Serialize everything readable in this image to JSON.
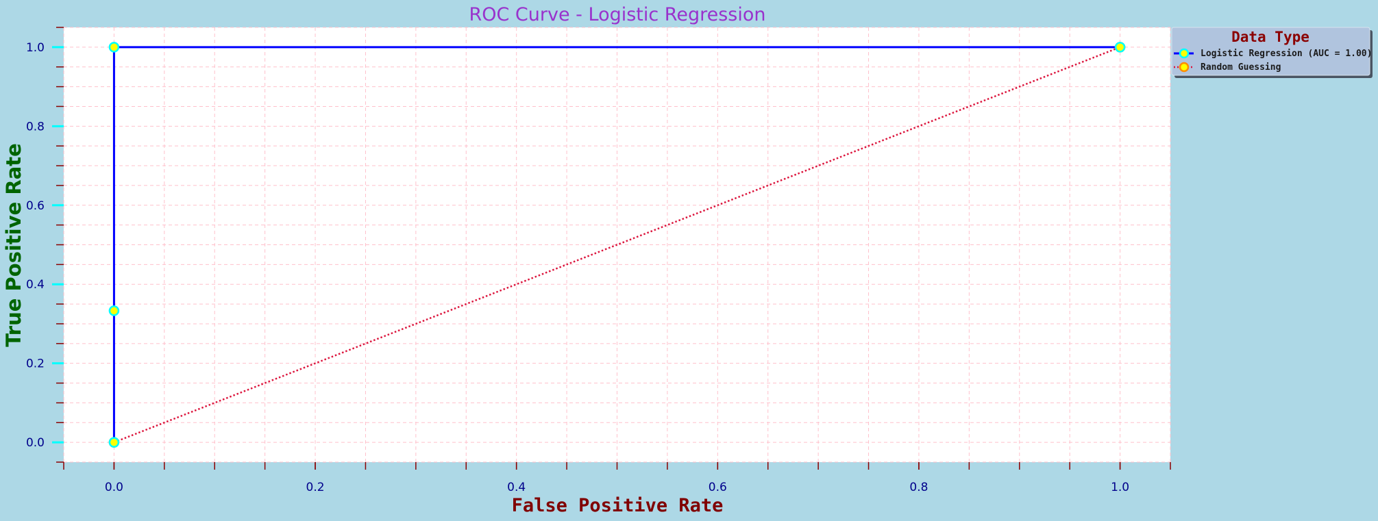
{
  "chart_data": {
    "type": "line",
    "title": "ROC Curve - Logistic Regression",
    "xlabel": "False Positive Rate",
    "ylabel": "True Positive Rate",
    "xlim": [
      -0.05,
      1.05
    ],
    "ylim": [
      -0.05,
      1.05
    ],
    "x_ticks": [
      0.0,
      0.2,
      0.4,
      0.6,
      0.8,
      1.0
    ],
    "x_tick_labels": [
      "0.0",
      "0.2",
      "0.4",
      "0.6",
      "0.8",
      "1.0"
    ],
    "y_ticks": [
      0.0,
      0.2,
      0.4,
      0.6,
      0.8,
      1.0
    ],
    "y_tick_labels": [
      "0.0",
      "0.2",
      "0.4",
      "0.6",
      "0.8",
      "1.0"
    ],
    "grid": true,
    "legend": {
      "title": "Data Type",
      "placement": "upper right, outside plot area"
    },
    "series": [
      {
        "name": "Logistic Regression (AUC = 1.00)",
        "x": [
          0.0,
          0.0,
          0.0,
          1.0
        ],
        "y": [
          0.0,
          0.333,
          1.0,
          1.0
        ],
        "line_color": "#0000ff",
        "line_style": "solid",
        "marker_face": "#ffff00",
        "marker_edge": "#00ffff"
      },
      {
        "name": "Random Guessing",
        "x": [
          0.0,
          1.0
        ],
        "y": [
          0.0,
          1.0
        ],
        "line_color": "#dc143c",
        "line_style": "dotted",
        "marker_face": "#ffff00",
        "marker_edge": "#ff8c00"
      }
    ]
  },
  "colors": {
    "page_background": "#add8e6",
    "plot_background": "#ffffff",
    "grid": "#ffc0cb",
    "major_tick": "#00ffff",
    "minor_tick": "#8b0000",
    "legend_background": "#b0c4de"
  }
}
